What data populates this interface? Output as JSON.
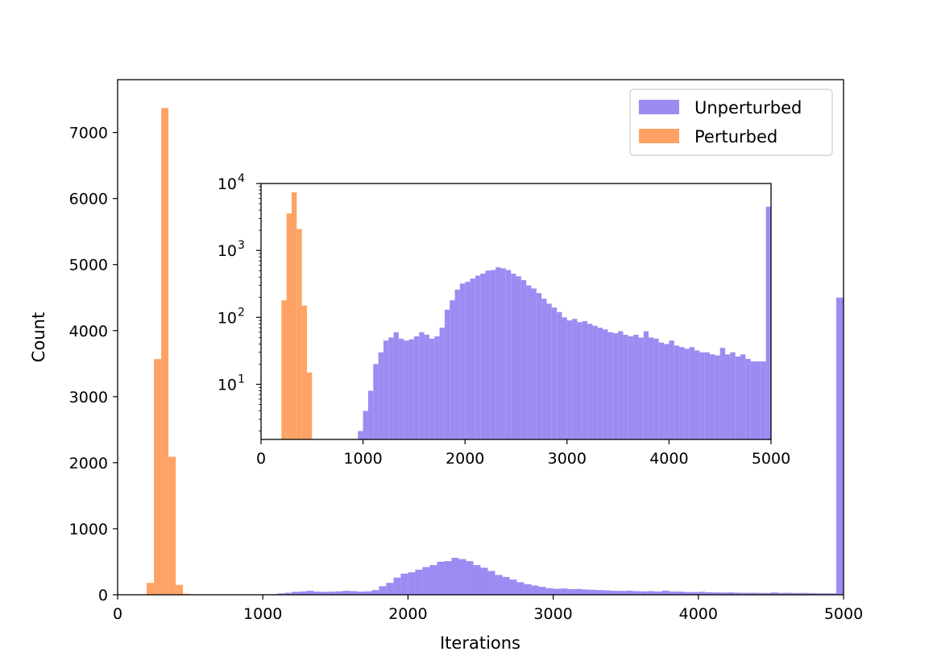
{
  "chart_data": [
    {
      "type": "bar",
      "role": "main-histogram",
      "xlabel": "Iterations",
      "ylabel": "Count",
      "xlim": [
        0,
        5000
      ],
      "ylim": [
        0,
        7800
      ],
      "xticks": [
        0,
        1000,
        2000,
        3000,
        4000,
        5000
      ],
      "yticks": [
        0,
        1000,
        2000,
        3000,
        4000,
        5000,
        6000,
        7000
      ],
      "legend": "top-right",
      "series": [
        {
          "name": "Unperturbed",
          "color": "#9b8cf2",
          "bin_width": 50,
          "bins": [
            {
              "x0": 900,
              "count": 1
            },
            {
              "x0": 950,
              "count": 2
            },
            {
              "x0": 1000,
              "count": 4
            },
            {
              "x0": 1050,
              "count": 8
            },
            {
              "x0": 1100,
              "count": 20
            },
            {
              "x0": 1150,
              "count": 30
            },
            {
              "x0": 1200,
              "count": 45
            },
            {
              "x0": 1250,
              "count": 50
            },
            {
              "x0": 1300,
              "count": 60
            },
            {
              "x0": 1350,
              "count": 48
            },
            {
              "x0": 1400,
              "count": 45
            },
            {
              "x0": 1450,
              "count": 47
            },
            {
              "x0": 1500,
              "count": 52
            },
            {
              "x0": 1550,
              "count": 60
            },
            {
              "x0": 1600,
              "count": 55
            },
            {
              "x0": 1650,
              "count": 48
            },
            {
              "x0": 1700,
              "count": 52
            },
            {
              "x0": 1750,
              "count": 70
            },
            {
              "x0": 1800,
              "count": 130
            },
            {
              "x0": 1850,
              "count": 180
            },
            {
              "x0": 1900,
              "count": 260
            },
            {
              "x0": 1950,
              "count": 320
            },
            {
              "x0": 2000,
              "count": 340
            },
            {
              "x0": 2050,
              "count": 380
            },
            {
              "x0": 2100,
              "count": 420
            },
            {
              "x0": 2150,
              "count": 450
            },
            {
              "x0": 2200,
              "count": 500
            },
            {
              "x0": 2250,
              "count": 510
            },
            {
              "x0": 2300,
              "count": 560
            },
            {
              "x0": 2350,
              "count": 540
            },
            {
              "x0": 2400,
              "count": 510
            },
            {
              "x0": 2450,
              "count": 450
            },
            {
              "x0": 2500,
              "count": 410
            },
            {
              "x0": 2550,
              "count": 360
            },
            {
              "x0": 2600,
              "count": 300
            },
            {
              "x0": 2650,
              "count": 270
            },
            {
              "x0": 2700,
              "count": 230
            },
            {
              "x0": 2750,
              "count": 190
            },
            {
              "x0": 2800,
              "count": 160
            },
            {
              "x0": 2850,
              "count": 140
            },
            {
              "x0": 2900,
              "count": 120
            },
            {
              "x0": 2950,
              "count": 100
            },
            {
              "x0": 3000,
              "count": 90
            },
            {
              "x0": 3050,
              "count": 95
            },
            {
              "x0": 3100,
              "count": 85
            },
            {
              "x0": 3150,
              "count": 88
            },
            {
              "x0": 3200,
              "count": 80
            },
            {
              "x0": 3250,
              "count": 75
            },
            {
              "x0": 3300,
              "count": 70
            },
            {
              "x0": 3350,
              "count": 66
            },
            {
              "x0": 3400,
              "count": 60
            },
            {
              "x0": 3450,
              "count": 58
            },
            {
              "x0": 3500,
              "count": 62
            },
            {
              "x0": 3550,
              "count": 55
            },
            {
              "x0": 3600,
              "count": 52
            },
            {
              "x0": 3650,
              "count": 55
            },
            {
              "x0": 3700,
              "count": 50
            },
            {
              "x0": 3750,
              "count": 62
            },
            {
              "x0": 3800,
              "count": 50
            },
            {
              "x0": 3850,
              "count": 48
            },
            {
              "x0": 3900,
              "count": 42
            },
            {
              "x0": 3950,
              "count": 40
            },
            {
              "x0": 4000,
              "count": 45
            },
            {
              "x0": 4050,
              "count": 38
            },
            {
              "x0": 4100,
              "count": 36
            },
            {
              "x0": 4150,
              "count": 34
            },
            {
              "x0": 4200,
              "count": 36
            },
            {
              "x0": 4250,
              "count": 32
            },
            {
              "x0": 4300,
              "count": 30
            },
            {
              "x0": 4350,
              "count": 30
            },
            {
              "x0": 4400,
              "count": 28
            },
            {
              "x0": 4450,
              "count": 27
            },
            {
              "x0": 4500,
              "count": 35
            },
            {
              "x0": 4550,
              "count": 28
            },
            {
              "x0": 4600,
              "count": 30
            },
            {
              "x0": 4650,
              "count": 26
            },
            {
              "x0": 4700,
              "count": 28
            },
            {
              "x0": 4750,
              "count": 24
            },
            {
              "x0": 4800,
              "count": 22
            },
            {
              "x0": 4850,
              "count": 22
            },
            {
              "x0": 4900,
              "count": 22
            },
            {
              "x0": 4950,
              "count": 4500
            }
          ]
        },
        {
          "name": "Perturbed",
          "color": "#fea365",
          "bin_width": 50,
          "bins": [
            {
              "x0": 200,
              "count": 180
            },
            {
              "x0": 250,
              "count": 3570
            },
            {
              "x0": 300,
              "count": 7370
            },
            {
              "x0": 350,
              "count": 2090
            },
            {
              "x0": 400,
              "count": 150
            },
            {
              "x0": 450,
              "count": 15
            }
          ]
        }
      ]
    },
    {
      "type": "bar",
      "role": "inset-histogram",
      "yscale": "log",
      "xlim": [
        0,
        5000
      ],
      "ylim": [
        1.5,
        10000
      ],
      "xticks": [
        0,
        1000,
        2000,
        3000,
        4000,
        5000
      ],
      "yticks": [
        {
          "value": 10,
          "base": "10",
          "exp": "1"
        },
        {
          "value": 100,
          "base": "10",
          "exp": "2"
        },
        {
          "value": 1000,
          "base": "10",
          "exp": "3"
        },
        {
          "value": 10000,
          "base": "10",
          "exp": "4"
        }
      ],
      "series_ref": [
        "Unperturbed",
        "Perturbed"
      ]
    }
  ]
}
